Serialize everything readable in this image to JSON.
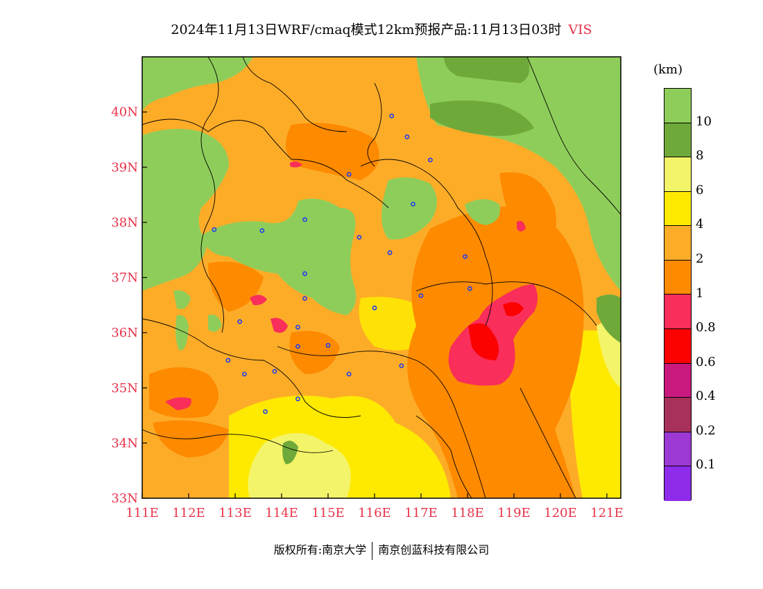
{
  "title": {
    "main": "2024年11月13日WRF/cmaq模式12km预报产品:11月13日03时",
    "variable": "VIS"
  },
  "legend": {
    "unit": "(km)",
    "colors": [
      "#8f2bea",
      "#9c38d3",
      "#a8315c",
      "#c9197e",
      "#fb0100",
      "#f92e5a",
      "#fe8a00",
      "#fdac28",
      "#feea01",
      "#f4f46a",
      "#6fa93a",
      "#8fcd5a"
    ],
    "labels": [
      "0.1",
      "0.2",
      "0.4",
      "0.6",
      "0.8",
      "1",
      "2",
      "4",
      "6",
      "8",
      "10"
    ]
  },
  "axes": {
    "x_ticks": [
      "111E",
      "112E",
      "113E",
      "114E",
      "115E",
      "116E",
      "117E",
      "118E",
      "119E",
      "120E",
      "121E"
    ],
    "y_ticks": [
      "33N",
      "34N",
      "35N",
      "36N",
      "37N",
      "38N",
      "39N",
      "40N"
    ]
  },
  "copyright": {
    "left": "版权所有:南京大学",
    "right": "南京创蓝科技有限公司"
  },
  "map": {
    "lon_range": [
      111,
      121.3
    ],
    "lat_range": [
      33,
      41
    ],
    "region": "North China Plain (Hebei, Shanxi, Shandong, Henan)",
    "city_markers": [
      [
        116.37,
        39.93
      ],
      [
        116.7,
        39.55
      ],
      [
        117.2,
        39.13
      ],
      [
        115.45,
        38.87
      ],
      [
        116.83,
        38.33
      ],
      [
        114.5,
        38.05
      ],
      [
        115.67,
        37.73
      ],
      [
        116.33,
        37.45
      ],
      [
        112.55,
        37.87
      ],
      [
        113.58,
        37.85
      ],
      [
        114.5,
        37.07
      ],
      [
        114.5,
        36.62
      ],
      [
        114.35,
        36.1
      ],
      [
        113.1,
        36.2
      ],
      [
        112.85,
        35.5
      ],
      [
        113.2,
        35.25
      ],
      [
        113.85,
        35.3
      ],
      [
        114.35,
        35.75
      ],
      [
        114.35,
        34.8
      ],
      [
        113.65,
        34.57
      ],
      [
        115.0,
        35.77
      ],
      [
        115.45,
        35.25
      ],
      [
        116.0,
        36.45
      ],
      [
        117.0,
        36.67
      ],
      [
        116.58,
        35.4
      ],
      [
        118.05,
        36.8
      ],
      [
        117.95,
        37.38
      ]
    ]
  }
}
